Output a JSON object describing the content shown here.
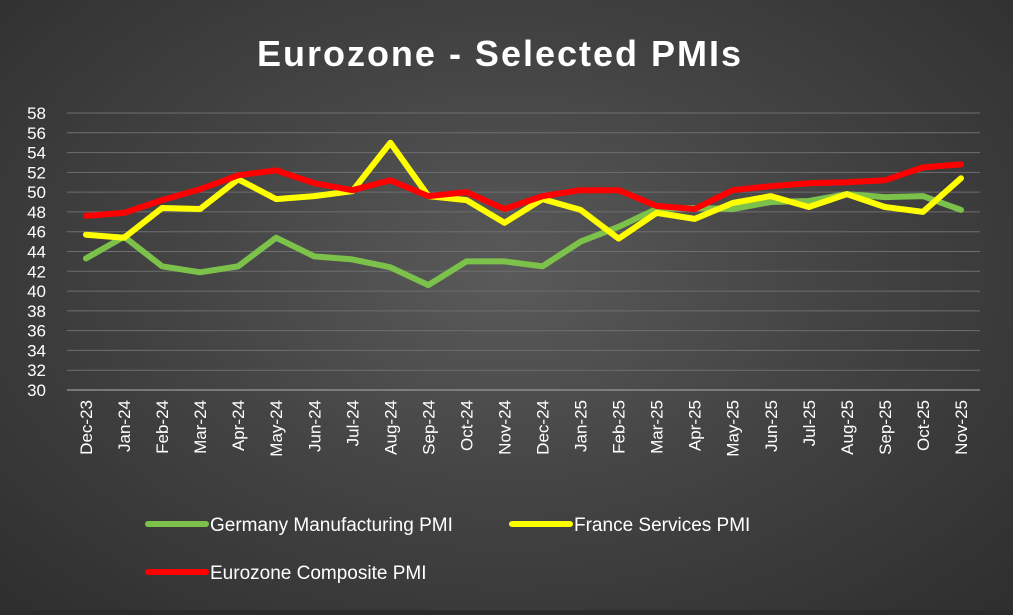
{
  "chart_data": {
    "type": "line",
    "title": "Eurozone - Selected PMIs",
    "categories": [
      "Dec-23",
      "Jan-24",
      "Feb-24",
      "Mar-24",
      "Apr-24",
      "May-24",
      "Jun-24",
      "Jul-24",
      "Aug-24",
      "Sep-24",
      "Oct-24",
      "Nov-24",
      "Dec-24",
      "Jan-25",
      "Feb-25",
      "Mar-25",
      "Apr-25",
      "May-25",
      "Jun-25",
      "Jul-25",
      "Aug-25",
      "Sep-25",
      "Oct-25",
      "Nov-25"
    ],
    "ylim": [
      30,
      58
    ],
    "ytick_step": 2,
    "grid": true,
    "legend_position": "bottom",
    "series": [
      {
        "name": "Germany Manufacturing PMI",
        "color": "#7cc24a",
        "values": [
          43.3,
          45.5,
          42.5,
          41.9,
          42.5,
          45.4,
          43.5,
          43.2,
          42.4,
          40.6,
          43.0,
          43.0,
          42.5,
          45.0,
          46.5,
          48.3,
          48.4,
          48.3,
          49.0,
          49.1,
          49.8,
          49.5,
          49.6,
          48.2
        ]
      },
      {
        "name": "France Services PMI",
        "color": "#ffff00",
        "values": [
          45.7,
          45.4,
          48.4,
          48.3,
          51.3,
          49.3,
          49.6,
          50.1,
          55.0,
          49.6,
          49.2,
          46.9,
          49.3,
          48.2,
          45.3,
          47.9,
          47.3,
          48.9,
          49.6,
          48.5,
          49.8,
          48.5,
          48.0,
          51.4
        ]
      },
      {
        "name": "Eurozone Composite PMI",
        "color": "#ff0000",
        "values": [
          47.6,
          47.9,
          49.2,
          50.3,
          51.7,
          52.2,
          50.9,
          50.2,
          51.2,
          49.6,
          50.0,
          48.3,
          49.6,
          50.2,
          50.2,
          48.6,
          48.3,
          50.2,
          50.6,
          50.9,
          51.0,
          51.2,
          52.5,
          52.8
        ]
      }
    ]
  }
}
